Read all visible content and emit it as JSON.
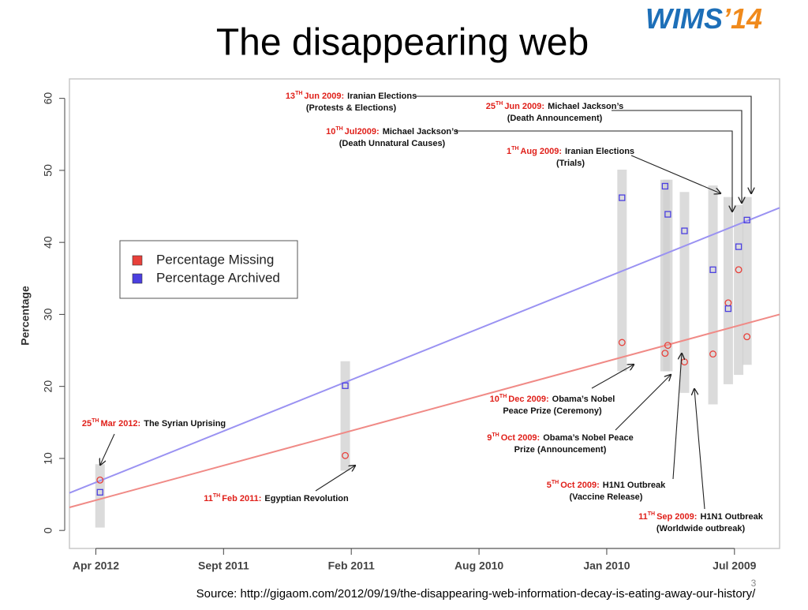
{
  "slide": {
    "title": "The disappearing web",
    "logo": {
      "main": "WIMS",
      "year": "’14"
    },
    "page_number": 3,
    "source": "Source: http://gigaom.com/2012/09/19/the-disappearing-web-information-decay-is-eating-away-our-history/"
  },
  "chart_data": {
    "type": "scatter",
    "y_label": "Percentage",
    "x": [
      "2012-03-25",
      "2011-02-11",
      "2009-12-10",
      "2009-10-09",
      "2009-10-05",
      "2009-09-11",
      "2009-08-01",
      "2009-07-10",
      "2009-06-25",
      "2009-06-13"
    ],
    "xlim": [
      "2012-05-15",
      "2009-04-27"
    ],
    "xticks": [
      {
        "value": "2012-04",
        "label": "Apr 2012"
      },
      {
        "value": "2011-09",
        "label": "Sept 2011"
      },
      {
        "value": "2011-02",
        "label": "Feb 2011"
      },
      {
        "value": "2010-08",
        "label": "Aug 2010"
      },
      {
        "value": "2010-01",
        "label": "Jan 2010"
      },
      {
        "value": "2009-07",
        "label": "Jul 2009"
      }
    ],
    "ylim": [
      -2.5,
      62.7
    ],
    "yticks": [
      0,
      10,
      20,
      30,
      40,
      50,
      60
    ],
    "legend": "upper left",
    "band_color": "#cfcfcf",
    "ranges": [
      [
        0.4,
        9.2
      ],
      [
        8.3,
        23.5
      ],
      [
        22.1,
        50.1
      ],
      [
        22.1,
        48.7
      ],
      [
        22.1,
        48.7
      ],
      [
        19.1,
        47.0
      ],
      [
        17.5,
        47.9
      ],
      [
        20.3,
        46.3
      ],
      [
        21.6,
        45.2
      ],
      [
        23.0,
        46.3
      ]
    ],
    "series": [
      {
        "name": "Percentage Missing",
        "color": "#e8403a",
        "trend_color": "#f08a86",
        "marker": "circle",
        "values": [
          7.0,
          10.4,
          26.1,
          24.6,
          25.7,
          23.4,
          24.5,
          31.6,
          36.2,
          26.9
        ],
        "trend": [
          3.2,
          30.0
        ]
      },
      {
        "name": "Percentage Archived",
        "color": "#4b3fe0",
        "trend_color": "#9a92f2",
        "marker": "square",
        "values": [
          5.3,
          20.1,
          46.2,
          47.8,
          43.9,
          41.6,
          36.2,
          30.8,
          39.4,
          43.1
        ],
        "trend": [
          5.2,
          44.8
        ]
      }
    ],
    "annotations": [
      {
        "day": "13",
        "suffix": "TH",
        "month": "Jun 2009:",
        "lines": [
          "Iranian Elections",
          "(Protests & Elections)"
        ]
      },
      {
        "day": "25",
        "suffix": "TH",
        "month": "Jun 2009:",
        "lines": [
          "Michael Jackson’s",
          "(Death Announcement)"
        ]
      },
      {
        "day": "10",
        "suffix": "TH",
        "month": "Jul2009:",
        "lines": [
          "Michael Jackson’s",
          "(Death Unnatural  Causes)"
        ]
      },
      {
        "day": "1",
        "suffix": "TH",
        "month": "Aug 2009:",
        "lines": [
          "Iranian Elections",
          "(Trials)"
        ]
      },
      {
        "day": "25",
        "suffix": "TH",
        "month": "Mar 2012:",
        "lines": [
          "The Syrian Uprising"
        ]
      },
      {
        "day": "11",
        "suffix": "TH",
        "month": "Feb 2011:",
        "lines": [
          "Egyptian Revolution"
        ]
      },
      {
        "day": "10",
        "suffix": "TH",
        "month": "Dec 2009:",
        "lines": [
          "Obama’s Nobel",
          "Peace Prize (Ceremony)"
        ]
      },
      {
        "day": "9",
        "suffix": "TH",
        "month": "Oct 2009:",
        "lines": [
          "Obama’s Nobel Peace",
          "Prize (Announcement)"
        ]
      },
      {
        "day": "5",
        "suffix": "TH",
        "month": "Oct 2009:",
        "lines": [
          "H1N1 Outbreak",
          "(Vaccine Release)"
        ]
      },
      {
        "day": "11",
        "suffix": "TH",
        "month": "Sep 2009:",
        "lines": [
          "H1N1 Outbreak",
          "(Worldwide outbreak)"
        ]
      }
    ]
  }
}
